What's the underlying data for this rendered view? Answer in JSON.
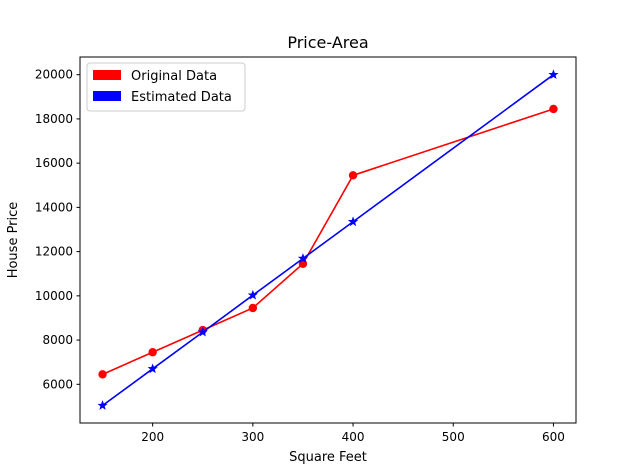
{
  "chart_data": {
    "type": "line",
    "title": "Price-Area",
    "xlabel": "Square Feet",
    "ylabel": "House Price",
    "xlim": [
      127.5,
      622.5
    ],
    "ylim": [
      4250,
      20800
    ],
    "xticks": [
      200,
      300,
      400,
      500,
      600
    ],
    "yticks": [
      6000,
      8000,
      10000,
      12000,
      14000,
      16000,
      18000,
      20000
    ],
    "grid": false,
    "legend": "top-left",
    "series": [
      {
        "name": "Original Data",
        "color": "#ff0000",
        "marker": "circle",
        "x": [
          150,
          200,
          250,
          300,
          350,
          400,
          600
        ],
        "y": [
          6450,
          7450,
          8450,
          9450,
          11450,
          15450,
          18450
        ]
      },
      {
        "name": "Estimated Data",
        "color": "#0000ff",
        "marker": "star",
        "x": [
          150,
          200,
          250,
          300,
          350,
          400,
          600
        ],
        "y": [
          5040,
          6700,
          8360,
          10030,
          11690,
          13350,
          20000
        ]
      }
    ]
  }
}
